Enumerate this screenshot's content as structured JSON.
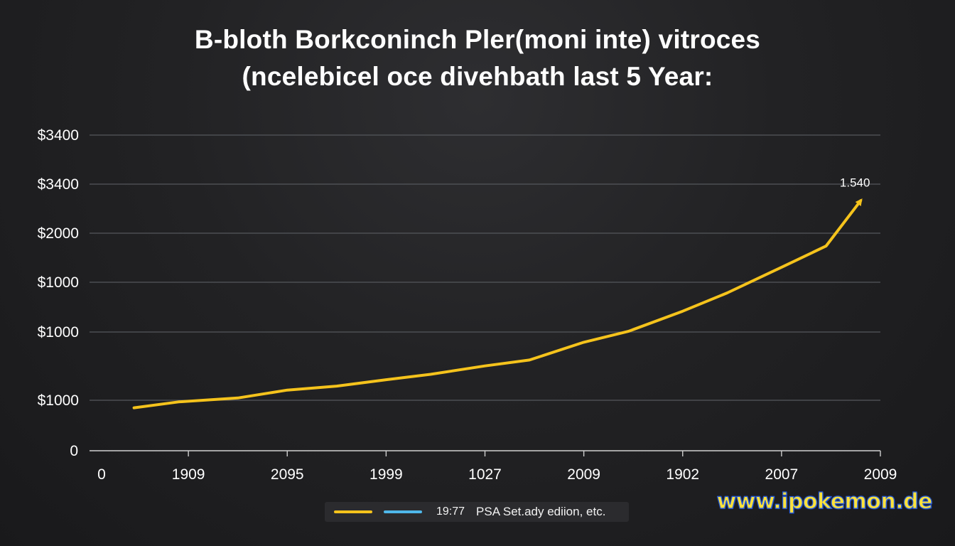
{
  "chart_data": {
    "type": "line",
    "title_lines": [
      "B-bloth Borkconinch Pler(moni inte) vitroces",
      "(ncelebicel oce divehbath last 5 Year:"
    ],
    "xlabel": "",
    "ylabel": "",
    "y_tick_labels": [
      "$3400",
      "$3400",
      "$2000",
      "$1000",
      "$1000",
      "$1000",
      "0"
    ],
    "x_tick_labels": [
      "0",
      "1909",
      "2095",
      "1999",
      "1027",
      "2009",
      "1902",
      "2007",
      "2009"
    ],
    "x_range": [
      0,
      8
    ],
    "y_range": [
      0,
      6.4
    ],
    "series": [
      {
        "name": "19:77",
        "color": "#f5c31c",
        "x": [
          0.45,
          0.9,
          1.5,
          2.0,
          2.5,
          3.0,
          3.45,
          4.0,
          4.45,
          5.0,
          5.45,
          6.0,
          6.45,
          7.0,
          7.45,
          7.8
        ],
        "y": [
          0.87,
          0.99,
          1.07,
          1.23,
          1.31,
          1.44,
          1.55,
          1.72,
          1.84,
          2.2,
          2.42,
          2.83,
          3.2,
          3.72,
          4.15,
          5.07
        ]
      },
      {
        "name": "PSA Set.ady ediion, etc.",
        "color": "#4fb8ea",
        "x": [],
        "y": []
      }
    ],
    "annotations": [
      {
        "text": "1.540"
      }
    ],
    "legend": [
      "19:77",
      "PSA Set.ady ediion, etc."
    ],
    "grid": true,
    "legend_position": "bottom-center"
  },
  "watermark": "www.ipokemon.de"
}
